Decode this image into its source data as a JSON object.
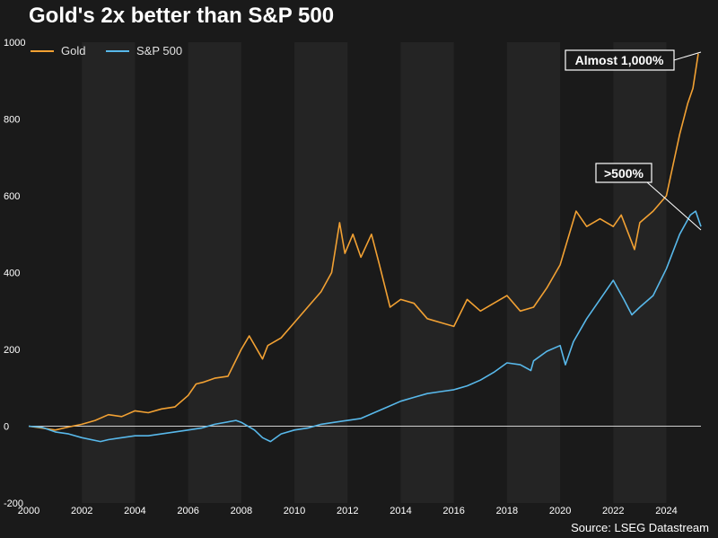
{
  "title": "Gold's 2x better than S&P 500",
  "source": "Source: LSEG Datastream",
  "colors": {
    "background": "#1a1a1a",
    "band": "#242424",
    "gold": "#f2a133",
    "sp500": "#58b8ea",
    "zero_line": "#cfcfcf",
    "annotation_border": "#ffffff"
  },
  "chart_data": {
    "type": "line",
    "title": "Gold's 2x better than S&P 500",
    "xlabel": "",
    "ylabel": "",
    "xlim": [
      2000,
      2025.3
    ],
    "ylim": [
      -200,
      1000
    ],
    "x_ticks": [
      2000,
      2002,
      2004,
      2006,
      2008,
      2010,
      2012,
      2014,
      2016,
      2018,
      2020,
      2022,
      2024
    ],
    "y_ticks": [
      -200,
      0,
      200,
      400,
      600,
      800,
      1000
    ],
    "legend": "top-left",
    "series": [
      {
        "name": "Gold",
        "color": "#f2a133",
        "points": [
          [
            2000,
            0
          ],
          [
            2000.5,
            -5
          ],
          [
            2001,
            -10
          ],
          [
            2001.5,
            -2
          ],
          [
            2002,
            5
          ],
          [
            2002.5,
            15
          ],
          [
            2003,
            30
          ],
          [
            2003.5,
            25
          ],
          [
            2004,
            40
          ],
          [
            2004.5,
            35
          ],
          [
            2005,
            45
          ],
          [
            2005.5,
            50
          ],
          [
            2006,
            80
          ],
          [
            2006.3,
            110
          ],
          [
            2006.6,
            115
          ],
          [
            2007,
            125
          ],
          [
            2007.5,
            130
          ],
          [
            2008,
            200
          ],
          [
            2008.3,
            235
          ],
          [
            2008.8,
            175
          ],
          [
            2009,
            210
          ],
          [
            2009.5,
            230
          ],
          [
            2010,
            270
          ],
          [
            2010.5,
            310
          ],
          [
            2011,
            350
          ],
          [
            2011.4,
            400
          ],
          [
            2011.7,
            530
          ],
          [
            2011.9,
            450
          ],
          [
            2012.2,
            500
          ],
          [
            2012.5,
            440
          ],
          [
            2012.9,
            500
          ],
          [
            2013.2,
            420
          ],
          [
            2013.6,
            310
          ],
          [
            2014,
            330
          ],
          [
            2014.5,
            320
          ],
          [
            2015,
            280
          ],
          [
            2015.5,
            270
          ],
          [
            2016,
            260
          ],
          [
            2016.5,
            330
          ],
          [
            2017,
            300
          ],
          [
            2017.5,
            320
          ],
          [
            2018,
            340
          ],
          [
            2018.5,
            300
          ],
          [
            2019,
            310
          ],
          [
            2019.5,
            360
          ],
          [
            2020,
            420
          ],
          [
            2020.6,
            560
          ],
          [
            2021,
            520
          ],
          [
            2021.5,
            540
          ],
          [
            2022,
            520
          ],
          [
            2022.3,
            550
          ],
          [
            2022.8,
            460
          ],
          [
            2023,
            530
          ],
          [
            2023.5,
            560
          ],
          [
            2024,
            600
          ],
          [
            2024.5,
            760
          ],
          [
            2024.8,
            840
          ],
          [
            2025,
            880
          ],
          [
            2025.2,
            970
          ]
        ]
      },
      {
        "name": "S&P 500",
        "color": "#58b8ea",
        "points": [
          [
            2000,
            0
          ],
          [
            2000.5,
            -3
          ],
          [
            2001,
            -15
          ],
          [
            2001.5,
            -20
          ],
          [
            2002,
            -30
          ],
          [
            2002.7,
            -40
          ],
          [
            2003,
            -35
          ],
          [
            2003.5,
            -30
          ],
          [
            2004,
            -25
          ],
          [
            2004.5,
            -25
          ],
          [
            2005,
            -20
          ],
          [
            2005.5,
            -15
          ],
          [
            2006,
            -10
          ],
          [
            2006.5,
            -5
          ],
          [
            2007,
            5
          ],
          [
            2007.8,
            15
          ],
          [
            2008,
            10
          ],
          [
            2008.5,
            -10
          ],
          [
            2008.8,
            -30
          ],
          [
            2009.1,
            -40
          ],
          [
            2009.5,
            -20
          ],
          [
            2010,
            -10
          ],
          [
            2010.5,
            -5
          ],
          [
            2011,
            5
          ],
          [
            2011.5,
            10
          ],
          [
            2012,
            15
          ],
          [
            2012.5,
            20
          ],
          [
            2013,
            35
          ],
          [
            2013.5,
            50
          ],
          [
            2014,
            65
          ],
          [
            2014.5,
            75
          ],
          [
            2015,
            85
          ],
          [
            2015.5,
            90
          ],
          [
            2016,
            95
          ],
          [
            2016.5,
            105
          ],
          [
            2017,
            120
          ],
          [
            2017.5,
            140
          ],
          [
            2018,
            165
          ],
          [
            2018.5,
            160
          ],
          [
            2018.9,
            145
          ],
          [
            2019,
            170
          ],
          [
            2019.5,
            195
          ],
          [
            2020,
            210
          ],
          [
            2020.2,
            160
          ],
          [
            2020.5,
            220
          ],
          [
            2021,
            280
          ],
          [
            2021.5,
            330
          ],
          [
            2022,
            380
          ],
          [
            2022.4,
            330
          ],
          [
            2022.7,
            290
          ],
          [
            2023,
            310
          ],
          [
            2023.5,
            340
          ],
          [
            2024,
            410
          ],
          [
            2024.5,
            500
          ],
          [
            2024.9,
            550
          ],
          [
            2025.1,
            560
          ],
          [
            2025.3,
            520
          ]
        ]
      }
    ],
    "annotations": [
      {
        "text": "Almost 1,000%",
        "target_series": "Gold"
      },
      {
        "text": ">500%",
        "target_series": "S&P 500"
      }
    ]
  }
}
